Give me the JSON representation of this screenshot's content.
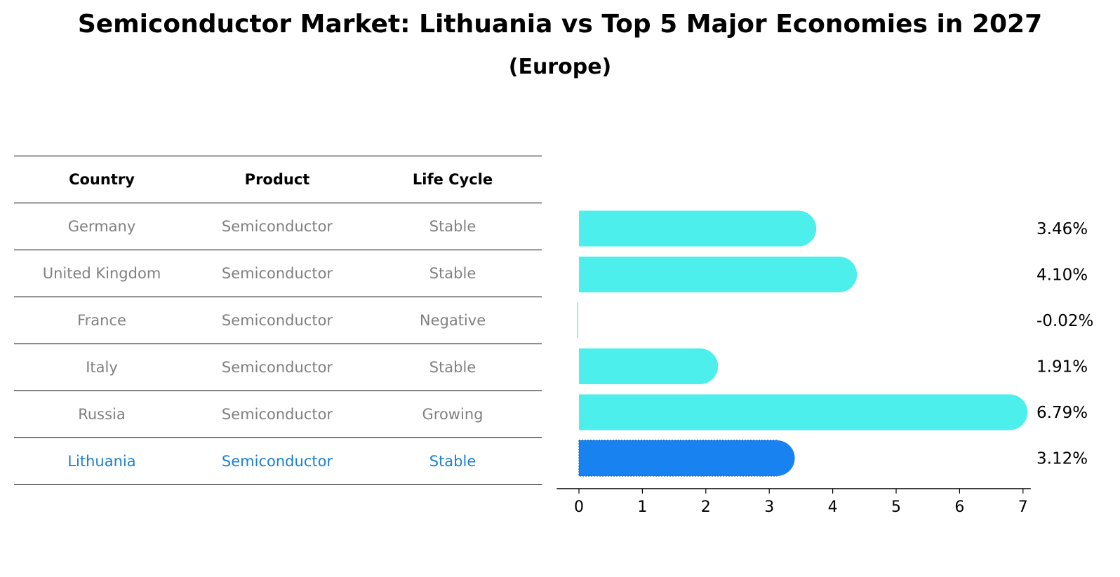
{
  "title": "Semiconductor Market: Lithuania vs Top 5 Major Economies in 2027",
  "subtitle": "(Europe)",
  "table": {
    "headers": [
      "Country",
      "Product",
      "Life Cycle"
    ],
    "rows": [
      {
        "country": "Germany",
        "product": "Semiconductor",
        "life_cycle": "Stable"
      },
      {
        "country": "United Kingdom",
        "product": "Semiconductor",
        "life_cycle": "Stable"
      },
      {
        "country": "France",
        "product": "Semiconductor",
        "life_cycle": "Negative"
      },
      {
        "country": "Italy",
        "product": "Semiconductor",
        "life_cycle": "Stable"
      },
      {
        "country": "Russia",
        "product": "Semiconductor",
        "life_cycle": "Growing"
      },
      {
        "country": "Lithuania",
        "product": "Semiconductor",
        "life_cycle": "Stable"
      }
    ]
  },
  "colors": {
    "bar": "#4cefec",
    "highlight_bar": "#1882f0",
    "highlight_text": "#1a80d4",
    "muted_text": "#808080"
  },
  "chart_data": {
    "type": "bar",
    "orientation": "horizontal",
    "categories": [
      "Germany",
      "United Kingdom",
      "France",
      "Italy",
      "Russia",
      "Lithuania"
    ],
    "values": [
      3.46,
      4.1,
      -0.02,
      1.91,
      6.79,
      3.12
    ],
    "value_labels": [
      "3.46%",
      "4.10%",
      "-0.02%",
      "1.91%",
      "6.79%",
      "3.12%"
    ],
    "highlight": "Lithuania",
    "xlim": [
      -0.35,
      7.1
    ],
    "xticks": [
      0,
      1,
      2,
      3,
      4,
      5,
      6,
      7
    ]
  }
}
